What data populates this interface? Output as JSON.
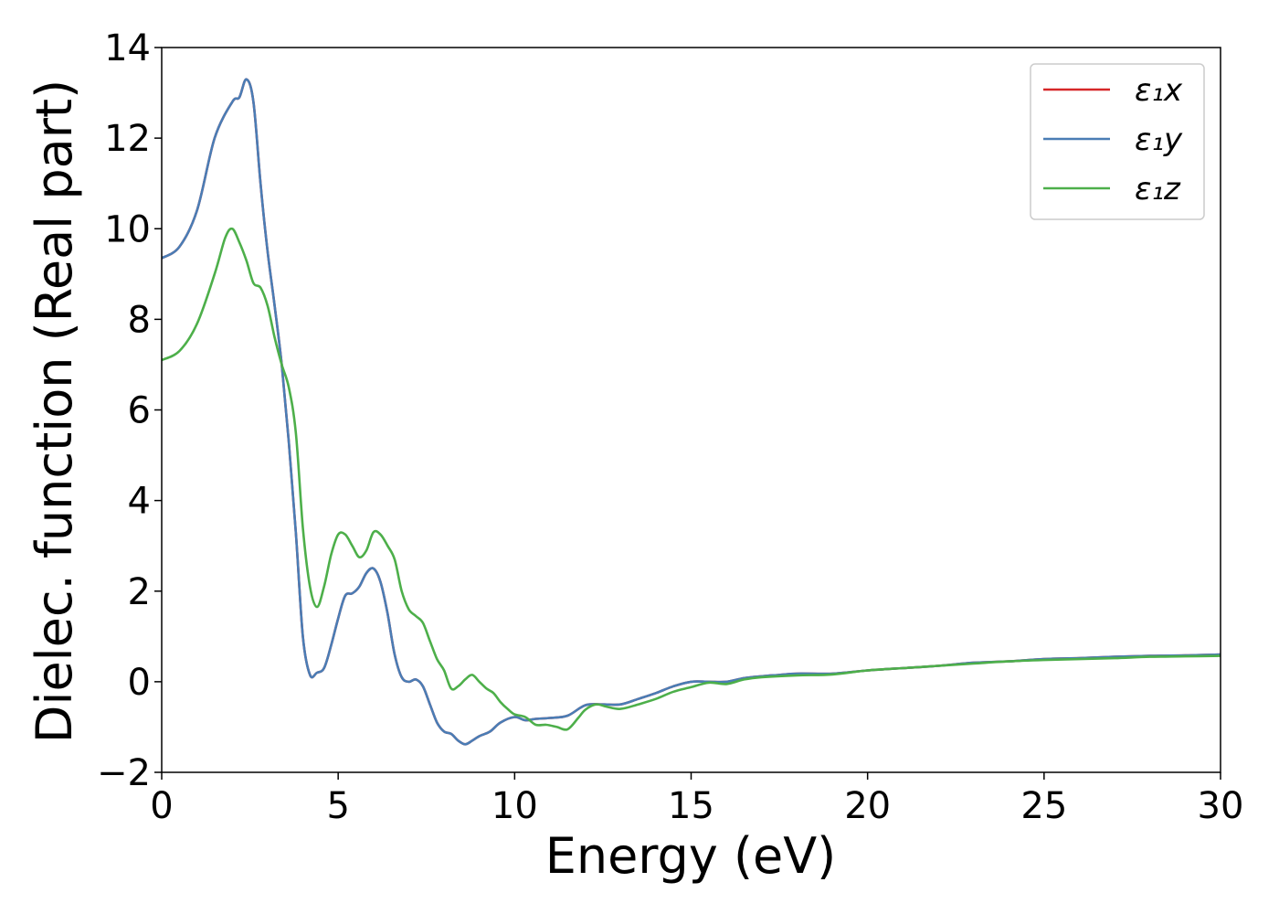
{
  "chart_data": {
    "type": "line",
    "xlabel": "Energy (eV)",
    "ylabel": "Dielec. function (Real part)",
    "xlim": [
      0,
      30
    ],
    "ylim": [
      -2,
      14
    ],
    "xticks": [
      0,
      5,
      10,
      15,
      20,
      25,
      30
    ],
    "yticks": [
      -2,
      0,
      2,
      4,
      6,
      8,
      10,
      12,
      14
    ],
    "xtick_labels": [
      "0",
      "5",
      "10",
      "15",
      "20",
      "25",
      "30"
    ],
    "ytick_labels": [
      "−2",
      "0",
      "2",
      "4",
      "6",
      "8",
      "10",
      "12",
      "14"
    ],
    "grid": false,
    "legend_position": "top-right",
    "legend": {
      "series_labels": [
        "ε₁x",
        "ε₁y",
        "ε₁z"
      ]
    },
    "series": [
      {
        "name": "ε₁x",
        "color": "#d62728",
        "x": [
          0,
          0.5,
          1.0,
          1.5,
          2.0,
          2.2,
          2.4,
          2.6,
          2.8,
          3.0,
          3.2,
          3.4,
          3.6,
          3.8,
          4.0,
          4.2,
          4.4,
          4.6,
          4.8,
          5.0,
          5.2,
          5.4,
          5.6,
          5.8,
          6.0,
          6.2,
          6.4,
          6.6,
          6.8,
          7.0,
          7.2,
          7.4,
          7.6,
          7.8,
          8.0,
          8.2,
          8.4,
          8.6,
          8.8,
          9.0,
          9.3,
          9.6,
          10.0,
          10.3,
          10.6,
          11.0,
          11.5,
          12.0,
          12.5,
          13.0,
          13.5,
          14.0,
          14.5,
          15.0,
          15.5,
          16.0,
          16.5,
          17.0,
          17.5,
          18.0,
          19.0,
          20.0,
          21.0,
          22.0,
          23.0,
          24.0,
          25.0,
          26.0,
          27.0,
          28.0,
          29.0,
          30.0
        ],
        "y": [
          9.35,
          9.6,
          10.4,
          12.0,
          12.8,
          12.9,
          13.3,
          12.8,
          11.0,
          9.5,
          8.3,
          7.0,
          5.3,
          3.3,
          1.0,
          0.15,
          0.2,
          0.3,
          0.8,
          1.4,
          1.9,
          1.95,
          2.1,
          2.4,
          2.5,
          2.2,
          1.5,
          0.6,
          0.1,
          0.0,
          0.05,
          -0.1,
          -0.5,
          -0.9,
          -1.1,
          -1.15,
          -1.3,
          -1.38,
          -1.3,
          -1.2,
          -1.1,
          -0.9,
          -0.78,
          -0.85,
          -0.82,
          -0.8,
          -0.75,
          -0.52,
          -0.5,
          -0.5,
          -0.38,
          -0.25,
          -0.1,
          0.0,
          0.0,
          0.0,
          0.08,
          0.12,
          0.15,
          0.18,
          0.18,
          0.25,
          0.3,
          0.35,
          0.42,
          0.45,
          0.5,
          0.52,
          0.55,
          0.57,
          0.58,
          0.6
        ]
      },
      {
        "name": "ε₁y",
        "color": "#4a7db5",
        "x": [
          0,
          0.5,
          1.0,
          1.5,
          2.0,
          2.2,
          2.4,
          2.6,
          2.8,
          3.0,
          3.2,
          3.4,
          3.6,
          3.8,
          4.0,
          4.2,
          4.4,
          4.6,
          4.8,
          5.0,
          5.2,
          5.4,
          5.6,
          5.8,
          6.0,
          6.2,
          6.4,
          6.6,
          6.8,
          7.0,
          7.2,
          7.4,
          7.6,
          7.8,
          8.0,
          8.2,
          8.4,
          8.6,
          8.8,
          9.0,
          9.3,
          9.6,
          10.0,
          10.3,
          10.6,
          11.0,
          11.5,
          12.0,
          12.5,
          13.0,
          13.5,
          14.0,
          14.5,
          15.0,
          15.5,
          16.0,
          16.5,
          17.0,
          17.5,
          18.0,
          19.0,
          20.0,
          21.0,
          22.0,
          23.0,
          24.0,
          25.0,
          26.0,
          27.0,
          28.0,
          29.0,
          30.0
        ],
        "y": [
          9.35,
          9.6,
          10.4,
          12.0,
          12.8,
          12.9,
          13.3,
          12.8,
          11.0,
          9.5,
          8.3,
          7.0,
          5.3,
          3.3,
          1.0,
          0.15,
          0.2,
          0.3,
          0.8,
          1.4,
          1.9,
          1.95,
          2.1,
          2.4,
          2.5,
          2.2,
          1.5,
          0.6,
          0.1,
          0.0,
          0.05,
          -0.1,
          -0.5,
          -0.9,
          -1.1,
          -1.15,
          -1.3,
          -1.38,
          -1.3,
          -1.2,
          -1.1,
          -0.9,
          -0.78,
          -0.85,
          -0.82,
          -0.8,
          -0.75,
          -0.52,
          -0.5,
          -0.5,
          -0.38,
          -0.25,
          -0.1,
          0.0,
          0.0,
          0.0,
          0.08,
          0.12,
          0.15,
          0.18,
          0.18,
          0.25,
          0.3,
          0.35,
          0.42,
          0.45,
          0.5,
          0.52,
          0.55,
          0.57,
          0.58,
          0.6
        ]
      },
      {
        "name": "ε₁z",
        "color": "#4daf4a",
        "x": [
          0,
          0.5,
          1.0,
          1.5,
          1.8,
          2.0,
          2.2,
          2.4,
          2.6,
          2.8,
          3.0,
          3.2,
          3.4,
          3.6,
          3.8,
          4.0,
          4.2,
          4.4,
          4.6,
          4.8,
          5.0,
          5.2,
          5.4,
          5.6,
          5.8,
          6.0,
          6.2,
          6.4,
          6.6,
          6.8,
          7.0,
          7.2,
          7.4,
          7.6,
          7.8,
          8.0,
          8.2,
          8.4,
          8.6,
          8.8,
          9.0,
          9.2,
          9.4,
          9.6,
          9.8,
          10.0,
          10.3,
          10.6,
          10.9,
          11.2,
          11.5,
          11.8,
          12.0,
          12.3,
          12.6,
          13.0,
          13.5,
          14.0,
          14.5,
          15.0,
          15.5,
          16.0,
          16.5,
          17.0,
          18.0,
          19.0,
          20.0,
          21.0,
          22.0,
          23.0,
          24.0,
          25.0,
          26.0,
          27.0,
          28.0,
          29.0,
          30.0
        ],
        "y": [
          7.1,
          7.3,
          7.9,
          9.0,
          9.8,
          10.0,
          9.7,
          9.3,
          8.8,
          8.7,
          8.3,
          7.6,
          7.0,
          6.5,
          5.5,
          3.4,
          2.1,
          1.65,
          2.1,
          2.8,
          3.25,
          3.25,
          3.0,
          2.75,
          2.9,
          3.3,
          3.25,
          3.0,
          2.7,
          2.0,
          1.6,
          1.45,
          1.3,
          0.9,
          0.5,
          0.25,
          -0.15,
          -0.1,
          0.05,
          0.15,
          0.0,
          -0.15,
          -0.25,
          -0.45,
          -0.6,
          -0.72,
          -0.78,
          -0.95,
          -0.95,
          -1.0,
          -1.05,
          -0.8,
          -0.62,
          -0.5,
          -0.55,
          -0.6,
          -0.5,
          -0.38,
          -0.22,
          -0.12,
          -0.02,
          -0.05,
          0.05,
          0.1,
          0.14,
          0.16,
          0.25,
          0.3,
          0.35,
          0.4,
          0.45,
          0.48,
          0.5,
          0.52,
          0.55,
          0.56,
          0.57
        ]
      }
    ]
  }
}
